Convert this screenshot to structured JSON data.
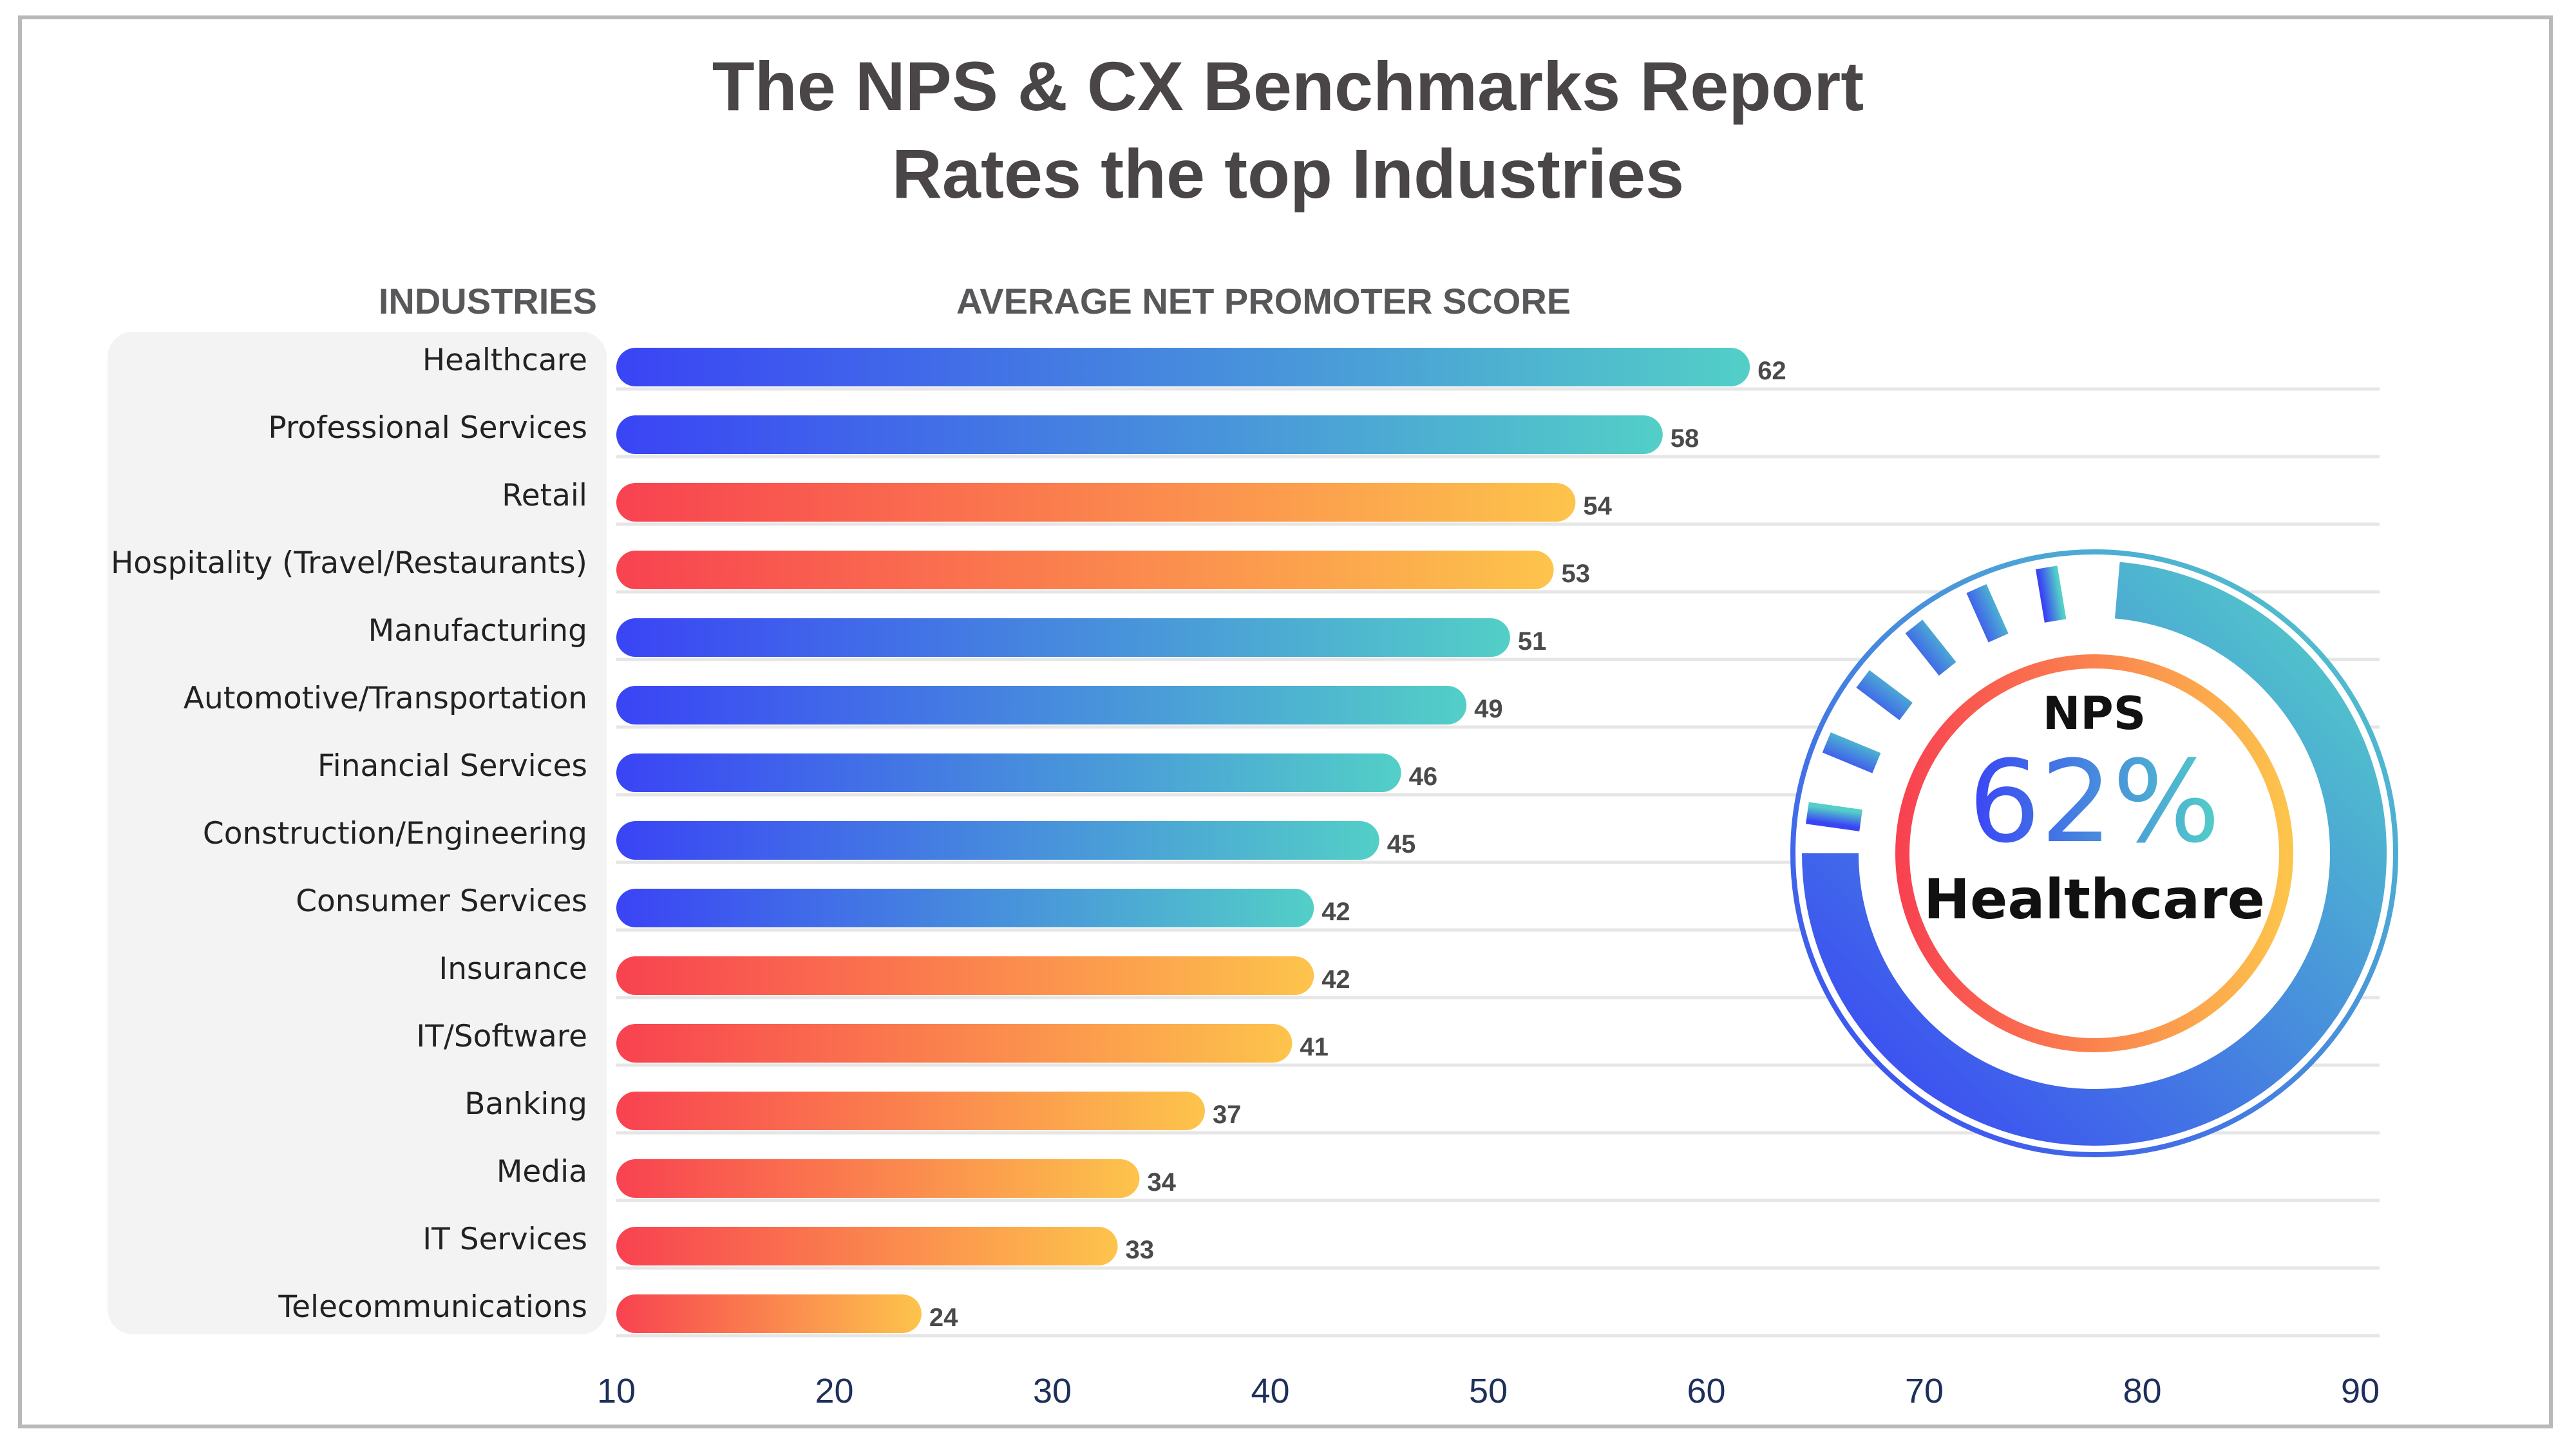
{
  "title_line1": "The NPS & CX Benchmarks Report",
  "title_line2": "Rates the top Industries",
  "industries_header": "INDUSTRIES",
  "score_header": "AVERAGE NET PROMOTER SCORE",
  "colors": {
    "blue_start": "#3a44f5",
    "blue_end": "#53cfc7",
    "red_start": "#f84250",
    "red_end": "#fdc44c",
    "title": "#4a4546"
  },
  "badge": {
    "label": "NPS",
    "value": "62%",
    "industry": "Healthcare"
  },
  "chart_data": {
    "type": "bar",
    "orientation": "horizontal",
    "categories": [
      "Healthcare",
      "Professional Services",
      "Retail",
      "Hospitality (Travel/Restaurants)",
      "Manufacturing",
      "Automotive/Transportation",
      "Financial Services",
      "Construction/Engineering",
      "Consumer Services",
      "Insurance",
      "IT/Software",
      "Banking",
      "Media",
      "IT Services",
      "Telecommunications"
    ],
    "values": [
      62,
      58,
      54,
      53,
      51,
      49,
      46,
      45,
      42,
      42,
      41,
      37,
      34,
      33,
      24
    ],
    "bar_color_group": [
      "blue",
      "blue",
      "red",
      "red",
      "blue",
      "blue",
      "blue",
      "blue",
      "blue",
      "red",
      "red",
      "red",
      "red",
      "red",
      "red"
    ],
    "x_ticks": [
      10,
      20,
      30,
      40,
      50,
      60,
      70,
      80,
      90
    ],
    "xlim": [
      10,
      90
    ],
    "grid": true
  }
}
